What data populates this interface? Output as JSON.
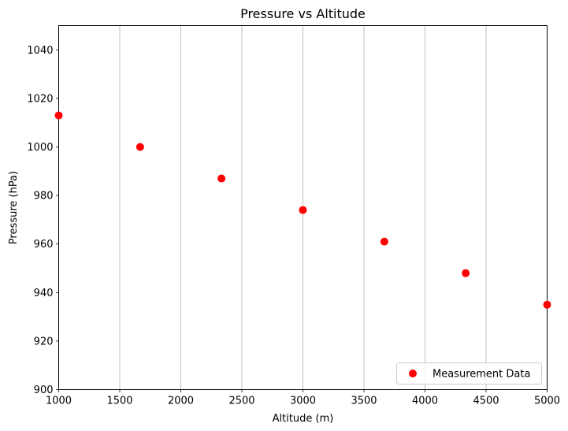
{
  "chart_data": {
    "type": "scatter",
    "title": "Pressure vs Altitude",
    "xlabel": "Altitude (m)",
    "ylabel": "Pressure (hPa)",
    "xlim": [
      1000,
      5000
    ],
    "ylim": [
      900,
      1050
    ],
    "xticks": [
      1000,
      1500,
      2000,
      2500,
      3000,
      3500,
      4000,
      4500,
      5000
    ],
    "yticks": [
      900,
      920,
      940,
      960,
      980,
      1000,
      1020,
      1040
    ],
    "grid": "vertical",
    "legend_position": "lower-right",
    "series": [
      {
        "name": "Measurement Data",
        "color": "#ff0000",
        "x": [
          1000,
          1667,
          2333,
          3000,
          3667,
          4333,
          5000
        ],
        "y": [
          1013,
          1000,
          987,
          974,
          961,
          948,
          935
        ]
      }
    ]
  }
}
